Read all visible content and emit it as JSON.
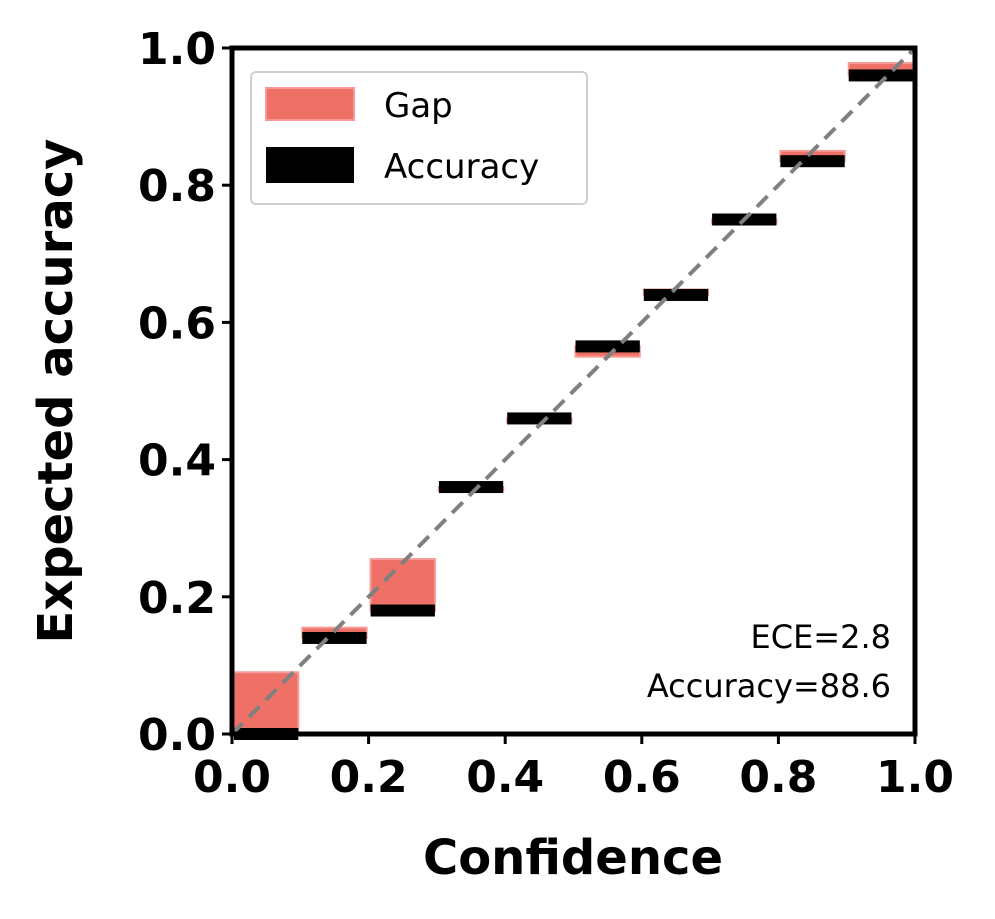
{
  "chart_data": {
    "type": "bar",
    "xlabel": "Confidence",
    "ylabel": "Expected accuracy",
    "xlim": [
      0.0,
      1.0
    ],
    "ylim": [
      0.0,
      1.0
    ],
    "xticks": [
      "0.0",
      "0.2",
      "0.4",
      "0.6",
      "0.8",
      "1.0"
    ],
    "yticks": [
      "0.0",
      "0.2",
      "0.4",
      "0.6",
      "0.8",
      "1.0"
    ],
    "grid": false,
    "legend_position": "top-left",
    "bin_width": 0.1,
    "bins": [
      {
        "x": 0.0,
        "accuracy": 0.0,
        "confidence": 0.09
      },
      {
        "x": 0.1,
        "accuracy": 0.14,
        "confidence": 0.155
      },
      {
        "x": 0.2,
        "accuracy": 0.18,
        "confidence": 0.255
      },
      {
        "x": 0.3,
        "accuracy": 0.36,
        "confidence": 0.355
      },
      {
        "x": 0.4,
        "accuracy": 0.46,
        "confidence": 0.455
      },
      {
        "x": 0.5,
        "accuracy": 0.565,
        "confidence": 0.55
      },
      {
        "x": 0.6,
        "accuracy": 0.64,
        "confidence": 0.648
      },
      {
        "x": 0.7,
        "accuracy": 0.75,
        "confidence": 0.748
      },
      {
        "x": 0.8,
        "accuracy": 0.835,
        "confidence": 0.85
      },
      {
        "x": 0.9,
        "accuracy": 0.96,
        "confidence": 0.978
      }
    ],
    "series": [
      {
        "name": "Gap",
        "color": "#ee7066"
      },
      {
        "name": "Accuracy",
        "color": "#000000"
      }
    ],
    "diagonal_color": "#808080",
    "annotations": [
      "ECE=2.8",
      "Accuracy=88.6"
    ]
  }
}
